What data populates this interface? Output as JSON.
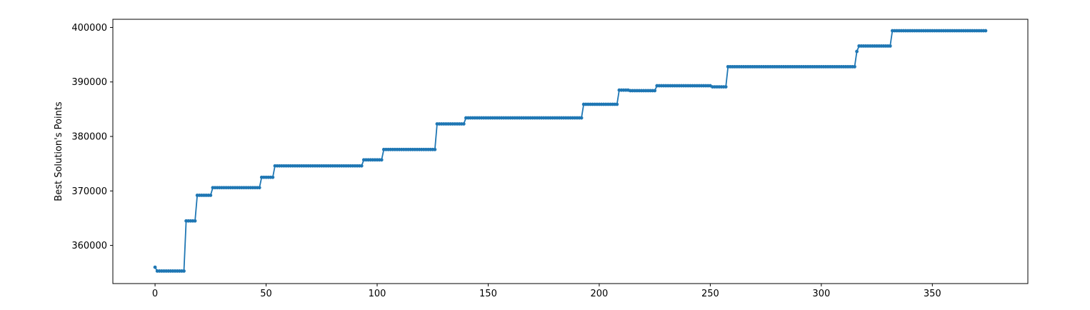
{
  "chart_data": {
    "type": "line",
    "title": "",
    "xlabel": "",
    "ylabel": "Best Solution's Points",
    "xlim": [
      -19,
      393
    ],
    "ylim": [
      353000,
      401500
    ],
    "x_ticks": [
      0,
      50,
      100,
      150,
      200,
      250,
      300,
      350
    ],
    "x_tick_labels": [
      "0",
      "50",
      "100",
      "150",
      "200",
      "250",
      "300",
      "350"
    ],
    "y_ticks": [
      360000,
      370000,
      380000,
      390000,
      400000
    ],
    "y_tick_labels": [
      "360000",
      "370000",
      "380000",
      "390000",
      "400000"
    ],
    "grid": false,
    "legend": "none",
    "colors": {
      "line": "#1f77b4",
      "axes": "#000000"
    },
    "series": [
      {
        "marker": "circle",
        "steps": [
          {
            "from": 0,
            "to": 0,
            "y": 356000
          },
          {
            "from": 1,
            "to": 13,
            "y": 355300
          },
          {
            "from": 14,
            "to": 18,
            "y": 364500
          },
          {
            "from": 19,
            "to": 25,
            "y": 369200
          },
          {
            "from": 26,
            "to": 47,
            "y": 370600
          },
          {
            "from": 48,
            "to": 53,
            "y": 372500
          },
          {
            "from": 54,
            "to": 93,
            "y": 374600
          },
          {
            "from": 94,
            "to": 102,
            "y": 375700
          },
          {
            "from": 103,
            "to": 126,
            "y": 377600
          },
          {
            "from": 127,
            "to": 139,
            "y": 382300
          },
          {
            "from": 140,
            "to": 192,
            "y": 383400
          },
          {
            "from": 193,
            "to": 208,
            "y": 385900
          },
          {
            "from": 209,
            "to": 213,
            "y": 388500
          },
          {
            "from": 214,
            "to": 225,
            "y": 388400
          },
          {
            "from": 226,
            "to": 250,
            "y": 389300
          },
          {
            "from": 251,
            "to": 257,
            "y": 389100
          },
          {
            "from": 258,
            "to": 315,
            "y": 392800
          },
          {
            "from": 316,
            "to": 316,
            "y": 395600
          },
          {
            "from": 317,
            "to": 331,
            "y": 396600
          },
          {
            "from": 332,
            "to": 374,
            "y": 399400
          }
        ]
      }
    ]
  }
}
